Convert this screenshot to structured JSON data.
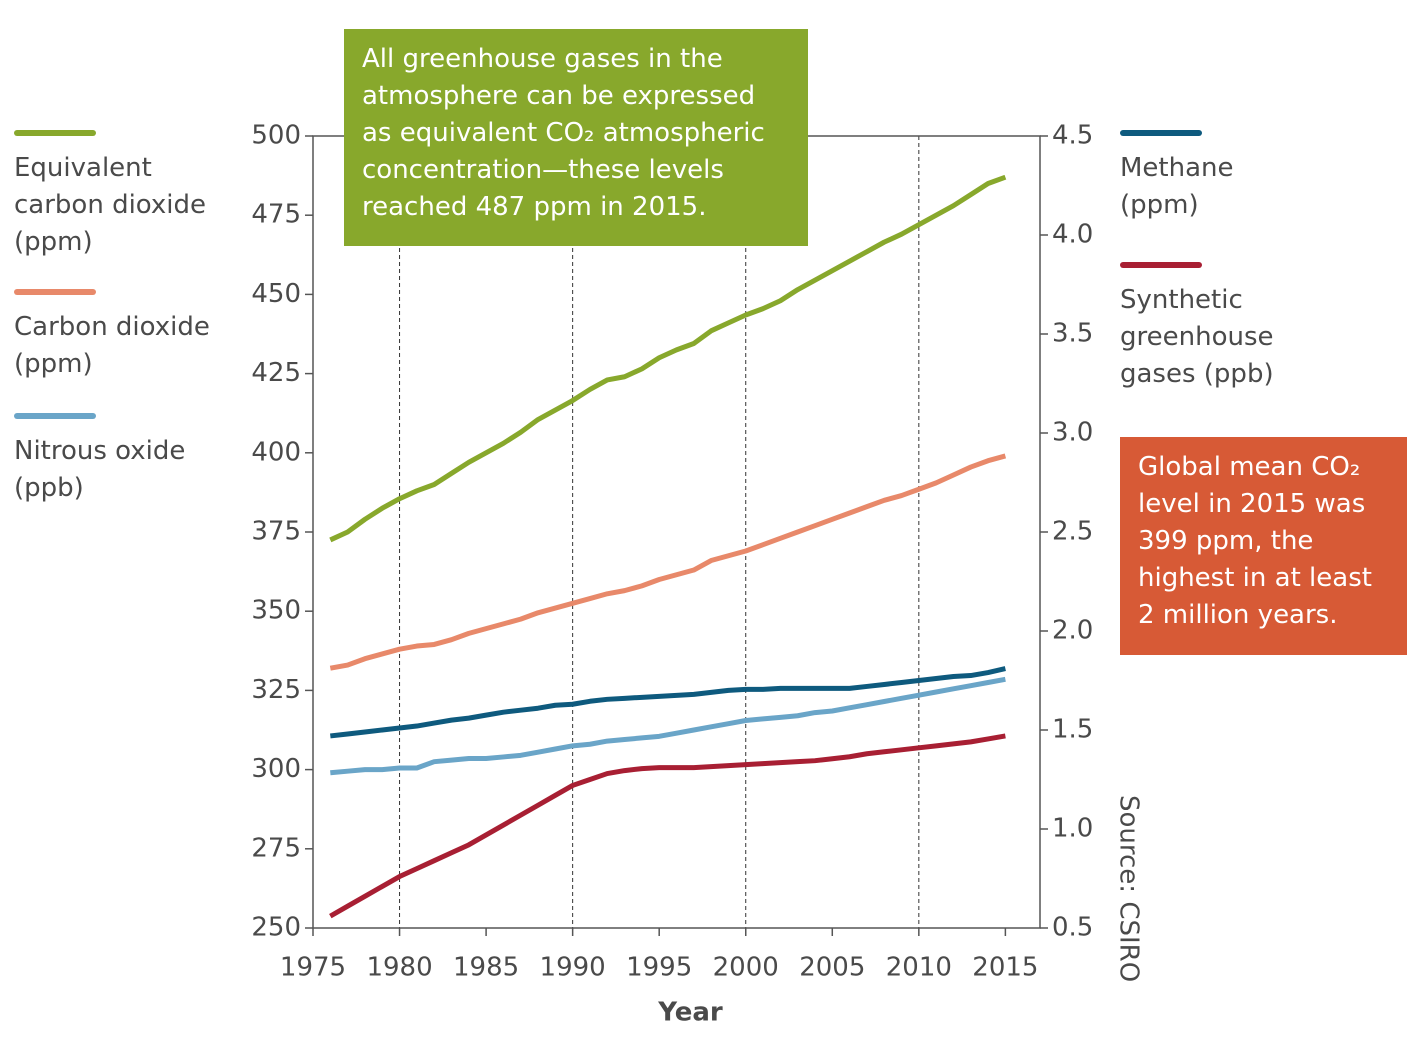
{
  "chart_data": {
    "type": "line",
    "x_label": "Year",
    "source": "Source: CSIRO",
    "annotations": [
      {
        "text": "All greenhouse gases in the atmosphere can be expressed as equivalent CO₂ atmospheric concentration—these levels reached 487 ppm in 2015.",
        "color": "#88a82c"
      },
      {
        "text": "Global mean CO₂ level in 2015 was 399 ppm, the highest in at least 2 million years.",
        "color": "#d75a36"
      }
    ],
    "x": [
      1976,
      1977,
      1978,
      1979,
      1980,
      1981,
      1982,
      1983,
      1984,
      1985,
      1986,
      1987,
      1988,
      1989,
      1990,
      1991,
      1992,
      1993,
      1994,
      1995,
      1996,
      1997,
      1998,
      1999,
      2000,
      2001,
      2002,
      2003,
      2004,
      2005,
      2006,
      2007,
      2008,
      2009,
      2010,
      2011,
      2012,
      2013,
      2014,
      2015
    ],
    "xlim": [
      1975,
      2017
    ],
    "xticks": [
      1975,
      1980,
      1985,
      1990,
      1995,
      2000,
      2005,
      2010,
      2015
    ],
    "x_grid": [
      1980,
      1990,
      2000,
      2010
    ],
    "ylim": [
      250,
      500
    ],
    "yticks": [
      250,
      275,
      300,
      325,
      350,
      375,
      400,
      425,
      450,
      475,
      500
    ],
    "y2lim": [
      0.5,
      4.5
    ],
    "y2ticks": [
      {
        "value": 0.5,
        "label": "0.5"
      },
      {
        "value": 1,
        "label": "1.0"
      },
      {
        "value": 1.5,
        "label": "1.5"
      },
      {
        "value": 2,
        "label": "2.0"
      },
      {
        "value": 2.5,
        "label": "2.5"
      },
      {
        "value": 3,
        "label": "3.0"
      },
      {
        "value": 3.5,
        "label": "3.5"
      },
      {
        "value": 4,
        "label": "4.0"
      },
      {
        "value": 4.5,
        "label": "4.5"
      }
    ],
    "series": [
      {
        "name": "Equivalent carbon dioxide (ppm)",
        "color": "#88a82c",
        "values": [
          372.5,
          375,
          379,
          382.5,
          385.5,
          388,
          390,
          393.5,
          397,
          400,
          403,
          406.5,
          410.5,
          413.5,
          416.5,
          420,
          423,
          424,
          426.5,
          430,
          432.5,
          434.5,
          438.5,
          441,
          443.5,
          445.5,
          448,
          451.5,
          454.5,
          457.5,
          460.5,
          463.5,
          466.5,
          469,
          472,
          475,
          478,
          481.5,
          485,
          487
        ]
      },
      {
        "name": "Carbon dioxide (ppm)",
        "color": "#e8896a",
        "values": [
          332,
          333,
          335,
          336.5,
          338,
          339,
          339.5,
          341,
          343,
          344.5,
          346,
          347.5,
          349.5,
          351,
          352.5,
          354,
          355.5,
          356.5,
          358,
          360,
          361.5,
          363,
          366,
          367.5,
          369,
          371,
          373,
          375,
          377,
          379,
          381,
          383,
          385,
          386.5,
          388.5,
          390.5,
          393,
          395.5,
          397.5,
          399
        ]
      },
      {
        "name": "Nitrous oxide (ppb)",
        "color": "#6aa5c8",
        "values": [
          299,
          299.5,
          300,
          300,
          300.5,
          300.5,
          302.5,
          303,
          303.5,
          303.5,
          304,
          304.5,
          305.5,
          306.5,
          307.5,
          308,
          309,
          309.5,
          310,
          310.5,
          311.5,
          312.5,
          313.5,
          314.5,
          315.5,
          316,
          316.5,
          317,
          318,
          318.5,
          319.5,
          320.5,
          321.5,
          322.5,
          323.5,
          324.5,
          325.5,
          326.5,
          327.5,
          328.5
        ]
      },
      {
        "name": "Methane (ppm)",
        "color": "#0e5a7e",
        "axis": "y2",
        "values": [
          1.47,
          1.48,
          1.49,
          1.5,
          1.51,
          1.52,
          1.535,
          1.55,
          1.56,
          1.575,
          1.59,
          1.6,
          1.61,
          1.625,
          1.63,
          1.645,
          1.655,
          1.66,
          1.665,
          1.67,
          1.675,
          1.68,
          1.69,
          1.7,
          1.705,
          1.705,
          1.71,
          1.71,
          1.71,
          1.71,
          1.71,
          1.72,
          1.73,
          1.74,
          1.75,
          1.76,
          1.77,
          1.775,
          1.79,
          1.81
        ]
      },
      {
        "name": "Synthetic greenhouse gases (ppb)",
        "color": "#a81f33",
        "axis": "y2",
        "values": [
          0.56,
          0.61,
          0.66,
          0.71,
          0.76,
          0.8,
          0.84,
          0.88,
          0.92,
          0.97,
          1.02,
          1.07,
          1.12,
          1.17,
          1.22,
          1.25,
          1.28,
          1.295,
          1.305,
          1.31,
          1.31,
          1.31,
          1.315,
          1.32,
          1.325,
          1.33,
          1.335,
          1.34,
          1.345,
          1.355,
          1.365,
          1.38,
          1.39,
          1.4,
          1.41,
          1.42,
          1.43,
          1.44,
          1.455,
          1.47
        ]
      }
    ]
  }
}
